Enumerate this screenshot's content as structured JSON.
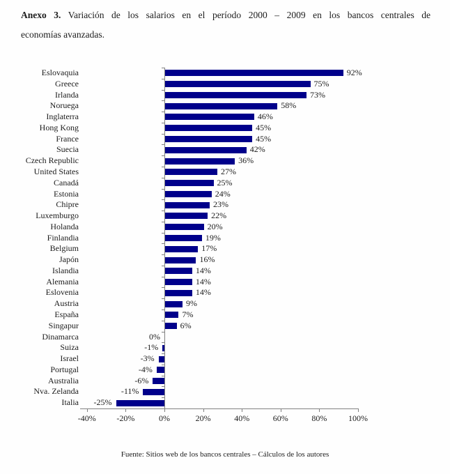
{
  "title": {
    "prefix": "Anexo 3.",
    "line1_rest": " Variación de los salarios en el período 2000 – 2009 en los bancos centrales de",
    "line2": "economías avanzadas."
  },
  "chart_data": {
    "type": "bar",
    "orientation": "horizontal",
    "title": "",
    "xlabel": "",
    "ylabel": "",
    "xlim": [
      -40,
      100
    ],
    "xtick_step": 20,
    "grid": false,
    "legend": "none",
    "bar_color": "#00008B",
    "axis_color": "#808080",
    "categories": [
      "Eslovaquia",
      "Greece",
      "Irlanda",
      "Noruega",
      "Inglaterra",
      "Hong Kong",
      "France",
      "Suecia",
      "Czech Republic",
      "United States",
      "Canadá",
      "Estonia",
      "Chipre",
      "Luxemburgo",
      "Holanda",
      "Finlandia",
      "Belgium",
      "Japón",
      "Islandia",
      "Alemania",
      "Eslovenia",
      "Austria",
      "España",
      "Singapur",
      "Dinamarca",
      "Suiza",
      "Israel",
      "Portugal",
      "Australia",
      "Nva. Zelanda",
      "Italia"
    ],
    "values": [
      92,
      75,
      73,
      58,
      46,
      45,
      45,
      42,
      36,
      27,
      25,
      24,
      23,
      22,
      20,
      19,
      17,
      16,
      14,
      14,
      14,
      9,
      7,
      6,
      0,
      -1,
      -3,
      -4,
      -6,
      -11,
      -25
    ],
    "value_labels": [
      "92%",
      "75%",
      "73%",
      "58%",
      "46%",
      "45%",
      "45%",
      "42%",
      "36%",
      "27%",
      "25%",
      "24%",
      "23%",
      "22%",
      "20%",
      "19%",
      "17%",
      "16%",
      "14%",
      "14%",
      "14%",
      "9%",
      "7%",
      "6%",
      "0%",
      "-1%",
      "-3%",
      "-4%",
      "-6%",
      "-11%",
      "-25%"
    ],
    "xtick_labels": [
      "-40%",
      "-20%",
      "0%",
      "20%",
      "40%",
      "60%",
      "80%",
      "100%"
    ],
    "xtick_values": [
      -40,
      -20,
      0,
      20,
      40,
      60,
      80,
      100
    ]
  },
  "footer": {
    "source": "Fuente: Sitios web de los bancos centrales – Cálculos de los autores"
  }
}
